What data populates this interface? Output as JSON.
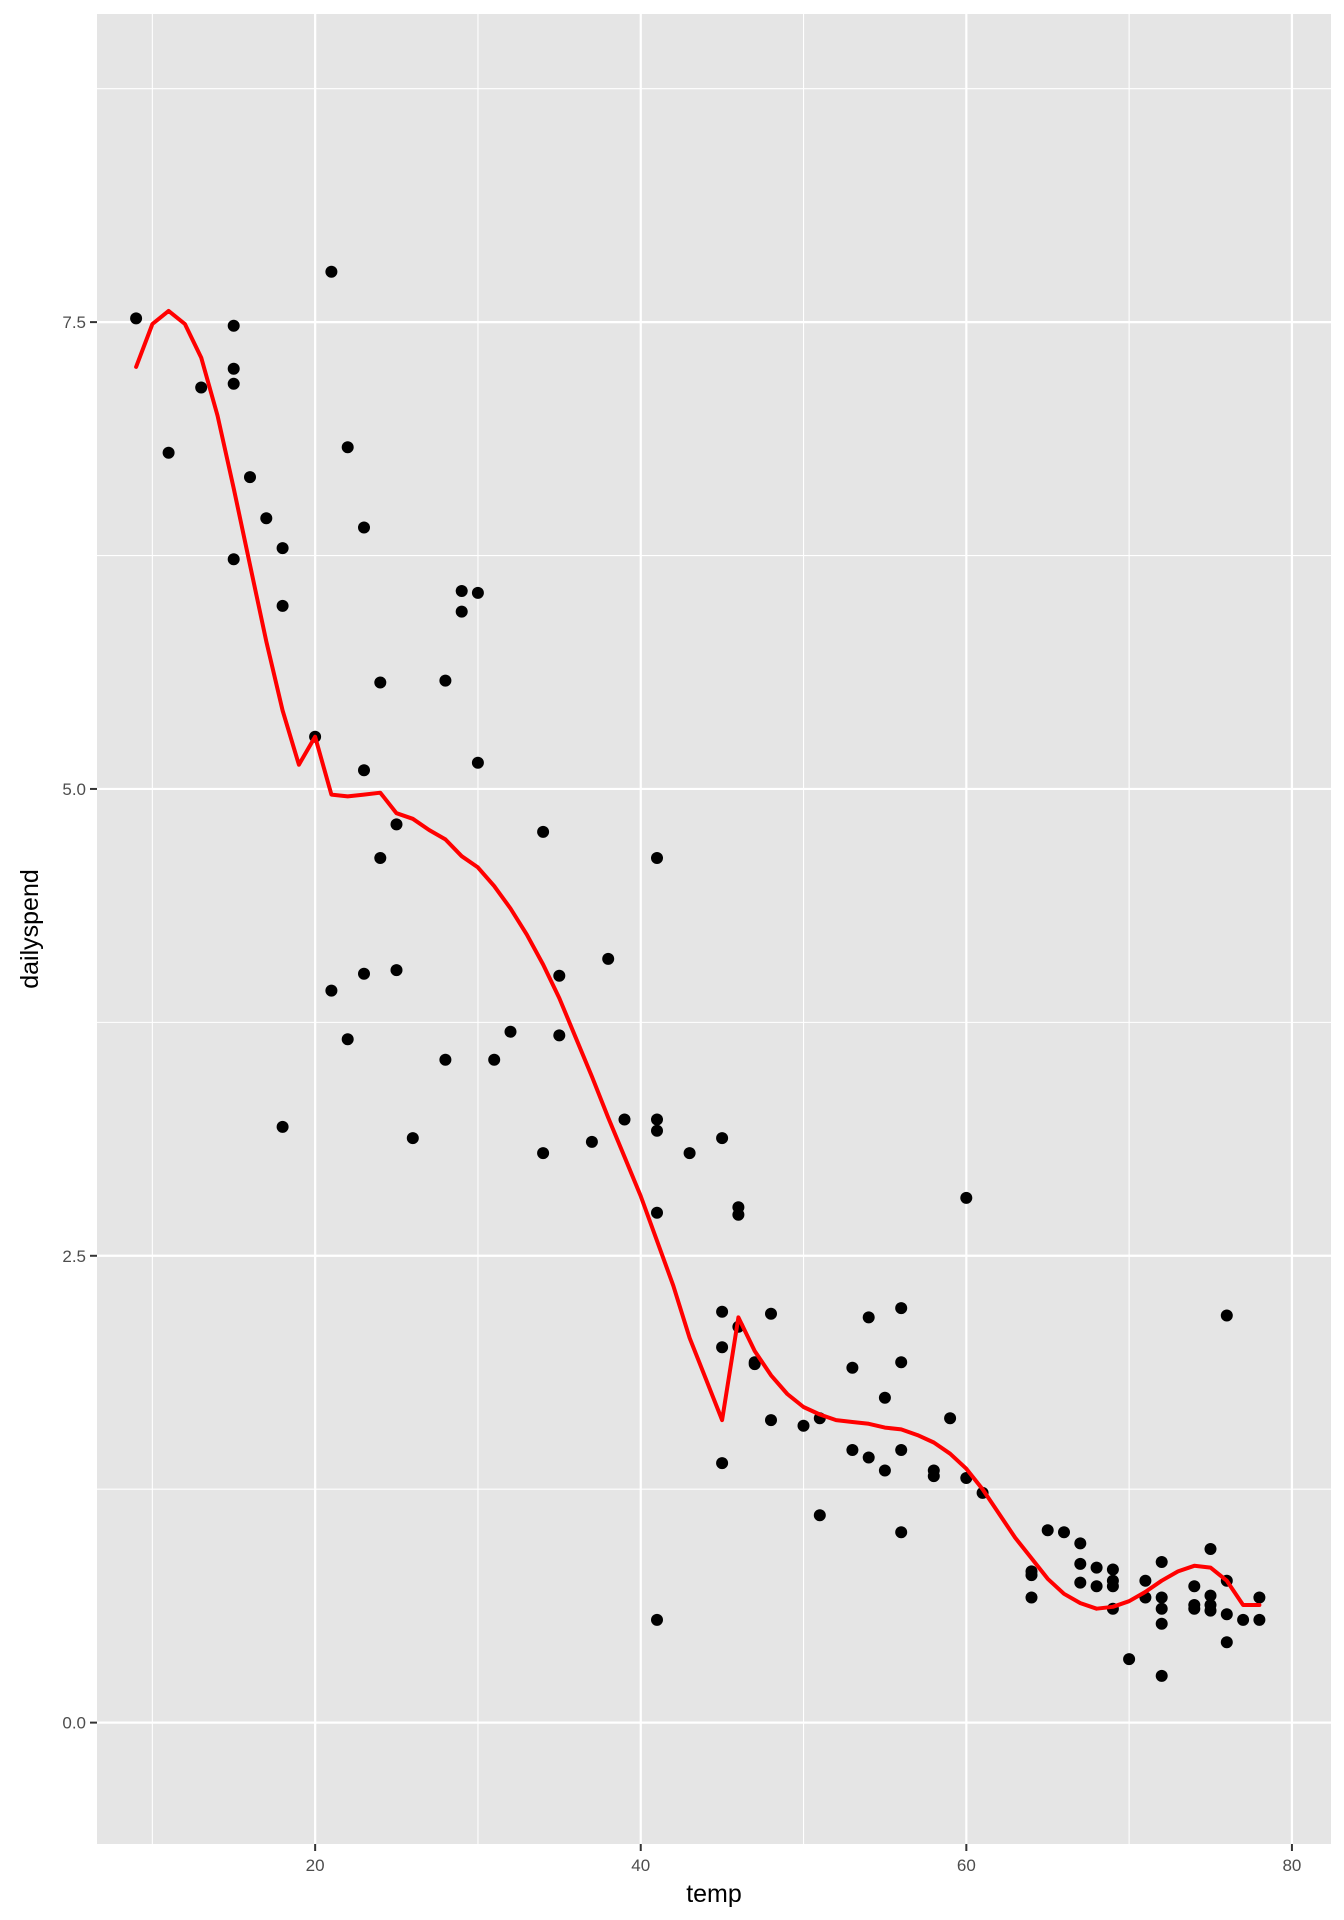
{
  "chart_data": {
    "type": "scatter",
    "xlabel": "temp",
    "ylabel": "dailyspend",
    "xlim": [
      6.6,
      82.4
    ],
    "ylim": [
      -0.65,
      9.15
    ],
    "x_ticks": [
      20,
      40,
      60,
      80
    ],
    "x_tick_labels": [
      "20",
      "40",
      "60",
      "80"
    ],
    "y_ticks": [
      0,
      2.5,
      5,
      7.5
    ],
    "y_tick_labels": [
      "0.0",
      "2.5",
      "5.0",
      "7.5"
    ],
    "grid": true,
    "legend": "none",
    "colors": {
      "panel": "#e5e5e5",
      "grid": "#ffffff",
      "points": "#000000",
      "smooth": "#ff0000"
    },
    "points": [
      [
        9,
        7.52
      ],
      [
        11,
        6.8
      ],
      [
        13,
        7.15
      ],
      [
        15,
        7.48
      ],
      [
        15,
        7.25
      ],
      [
        15,
        7.17
      ],
      [
        15,
        6.23
      ],
      [
        16,
        6.67
      ],
      [
        17,
        6.45
      ],
      [
        18,
        6.29
      ],
      [
        18,
        5.98
      ],
      [
        18,
        3.19
      ],
      [
        20,
        5.28
      ],
      [
        21,
        7.77
      ],
      [
        21,
        3.92
      ],
      [
        22,
        6.83
      ],
      [
        22,
        3.66
      ],
      [
        23,
        6.4
      ],
      [
        23,
        5.1
      ],
      [
        23,
        4.01
      ],
      [
        24,
        5.57
      ],
      [
        24,
        4.63
      ],
      [
        25,
        4.81
      ],
      [
        25,
        4.03
      ],
      [
        26,
        3.13
      ],
      [
        28,
        5.58
      ],
      [
        28,
        3.55
      ],
      [
        29,
        6.06
      ],
      [
        29,
        5.95
      ],
      [
        30,
        6.05
      ],
      [
        30,
        5.14
      ],
      [
        31,
        3.55
      ],
      [
        32,
        3.7
      ],
      [
        34,
        4.77
      ],
      [
        34,
        3.05
      ],
      [
        35,
        4.0
      ],
      [
        35,
        3.68
      ],
      [
        37,
        3.11
      ],
      [
        38,
        4.09
      ],
      [
        39,
        3.23
      ],
      [
        41,
        4.63
      ],
      [
        41,
        3.23
      ],
      [
        41,
        3.17
      ],
      [
        41,
        2.73
      ],
      [
        41,
        0.55
      ],
      [
        43,
        3.05
      ],
      [
        45,
        3.13
      ],
      [
        45,
        2.2
      ],
      [
        45,
        2.01
      ],
      [
        45,
        1.39
      ],
      [
        46,
        2.76
      ],
      [
        46,
        2.72
      ],
      [
        46,
        2.12
      ],
      [
        47,
        1.93
      ],
      [
        47,
        1.92
      ],
      [
        48,
        2.19
      ],
      [
        48,
        1.62
      ],
      [
        50,
        1.59
      ],
      [
        51,
        1.63
      ],
      [
        51,
        1.11
      ],
      [
        53,
        1.9
      ],
      [
        53,
        1.46
      ],
      [
        54,
        2.17
      ],
      [
        54,
        1.42
      ],
      [
        55,
        1.74
      ],
      [
        55,
        1.35
      ],
      [
        56,
        2.22
      ],
      [
        56,
        1.93
      ],
      [
        56,
        1.46
      ],
      [
        56,
        1.02
      ],
      [
        58,
        1.35
      ],
      [
        58,
        1.32
      ],
      [
        59,
        1.63
      ],
      [
        60,
        2.81
      ],
      [
        60,
        1.31
      ],
      [
        61,
        1.23
      ],
      [
        64,
        0.81
      ],
      [
        64,
        0.79
      ],
      [
        64,
        0.67
      ],
      [
        65,
        1.03
      ],
      [
        66,
        1.02
      ],
      [
        67,
        0.96
      ],
      [
        67,
        0.85
      ],
      [
        67,
        0.75
      ],
      [
        68,
        0.83
      ],
      [
        68,
        0.73
      ],
      [
        69,
        0.82
      ],
      [
        69,
        0.76
      ],
      [
        69,
        0.73
      ],
      [
        69,
        0.61
      ],
      [
        70,
        0.34
      ],
      [
        71,
        0.76
      ],
      [
        71,
        0.67
      ],
      [
        72,
        0.86
      ],
      [
        72,
        0.67
      ],
      [
        72,
        0.61
      ],
      [
        72,
        0.53
      ],
      [
        72,
        0.25
      ],
      [
        74,
        0.73
      ],
      [
        74,
        0.63
      ],
      [
        74,
        0.61
      ],
      [
        75,
        0.93
      ],
      [
        75,
        0.68
      ],
      [
        75,
        0.63
      ],
      [
        75,
        0.6
      ],
      [
        76,
        2.18
      ],
      [
        76,
        0.76
      ],
      [
        76,
        0.58
      ],
      [
        76,
        0.43
      ],
      [
        77,
        0.55
      ],
      [
        78,
        0.67
      ],
      [
        78,
        0.55
      ]
    ],
    "smooth_line": {
      "x": [
        9,
        10,
        11,
        12,
        13,
        14,
        15,
        16,
        17,
        18,
        19,
        20,
        21,
        22,
        23,
        24,
        25,
        26,
        27,
        28,
        29,
        30,
        31,
        32,
        33,
        34,
        35,
        36,
        37,
        38,
        39,
        40,
        41,
        42,
        43,
        44,
        45,
        46,
        47,
        48,
        49,
        50,
        51,
        52,
        53,
        54,
        55,
        56,
        57,
        58,
        59,
        60,
        61,
        62,
        63,
        64,
        65,
        66,
        67,
        68,
        69,
        70,
        71,
        72,
        73,
        74,
        75,
        76,
        77,
        78
      ],
      "y": [
        7.26,
        7.49,
        7.56,
        7.49,
        7.31,
        7.0,
        6.61,
        6.2,
        5.79,
        5.42,
        5.13,
        5.28,
        4.97,
        4.96,
        4.97,
        4.98,
        4.87,
        4.84,
        4.78,
        4.73,
        4.64,
        4.58,
        4.48,
        4.36,
        4.22,
        4.06,
        3.88,
        3.67,
        3.46,
        3.24,
        3.03,
        2.82,
        2.58,
        2.34,
        2.06,
        1.84,
        1.62,
        2.17,
        1.99,
        1.86,
        1.76,
        1.69,
        1.65,
        1.62,
        1.61,
        1.6,
        1.58,
        1.57,
        1.54,
        1.5,
        1.44,
        1.36,
        1.25,
        1.12,
        0.99,
        0.88,
        0.77,
        0.69,
        0.64,
        0.61,
        0.62,
        0.65,
        0.7,
        0.76,
        0.81,
        0.84,
        0.83,
        0.76,
        0.63,
        0.63
      ]
    }
  }
}
